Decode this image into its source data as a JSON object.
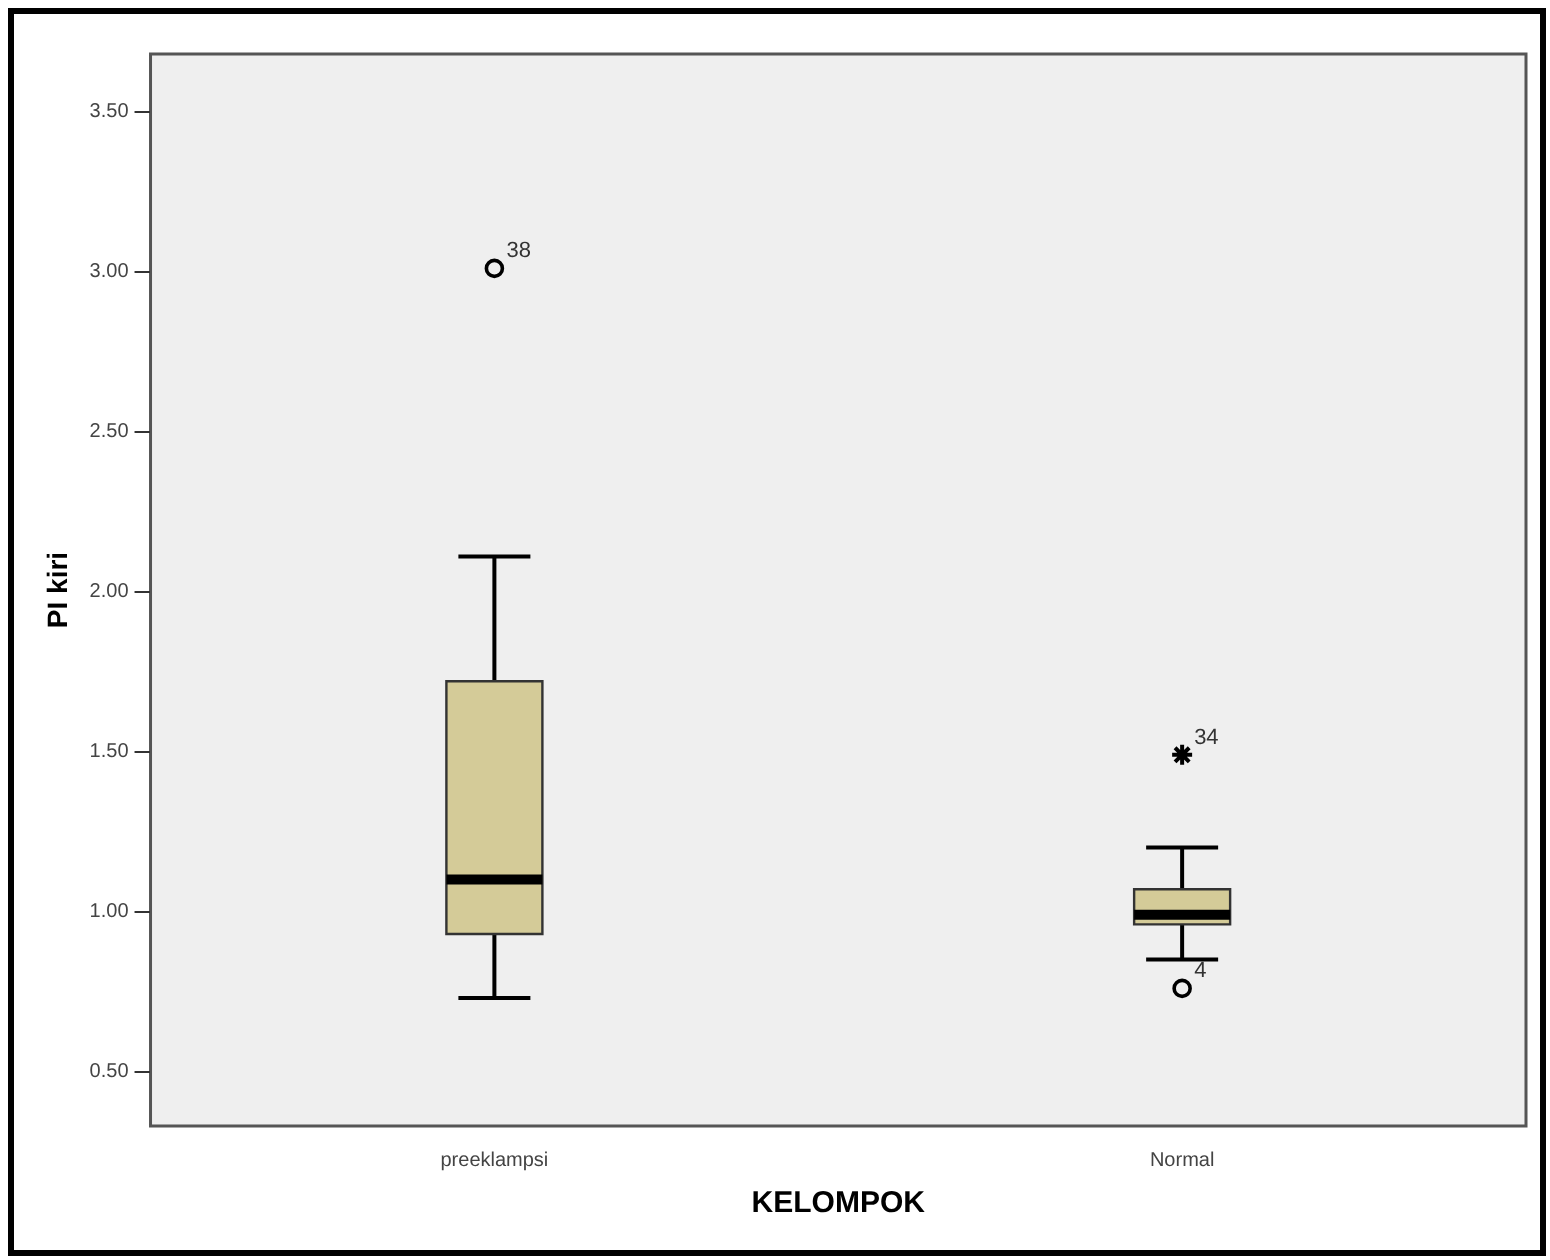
{
  "chart_data": {
    "type": "box",
    "xlabel": "KELOMPOK",
    "ylabel": "PI kiri",
    "categories": [
      "preeklampsi",
      "Normal"
    ],
    "boxes": [
      {
        "low": 0.73,
        "q1": 0.93,
        "median": 1.1,
        "q3": 1.72,
        "high": 2.11
      },
      {
        "low": 0.85,
        "q1": 0.96,
        "median": 0.99,
        "q3": 1.07,
        "high": 1.2
      }
    ],
    "color": "#d4cb98",
    "series": [
      {
        "type": "scatter",
        "marker": "circle",
        "color": "#000000",
        "x": [
          "preeklampsi",
          "Normal"
        ],
        "values": [
          3.01,
          0.76
        ]
      },
      {
        "type": "scatter",
        "marker": "cross",
        "color": "#000000",
        "x": [
          "Normal"
        ],
        "values": [
          1.49
        ]
      }
    ],
    "ylim": [
      0.33,
      3.68
    ],
    "yticks": [
      {
        "value": 0.5,
        "label": "0.50"
      },
      {
        "value": 1,
        "label": "1.00"
      },
      {
        "value": 1.5,
        "label": "1.50"
      },
      {
        "value": 2,
        "label": "2.00"
      },
      {
        "value": 2.5,
        "label": "2.50"
      },
      {
        "value": 3,
        "label": "3.00"
      },
      {
        "value": 3.5,
        "label": "3.50"
      }
    ],
    "annotations": [
      {
        "text": "38",
        "x": "preeklampsi",
        "y": 3.01
      },
      {
        "text": "34",
        "x": "Normal",
        "y": 1.49
      },
      {
        "text": "4",
        "x": "Normal",
        "y": 0.76
      }
    ],
    "grid": false,
    "legend": false
  }
}
